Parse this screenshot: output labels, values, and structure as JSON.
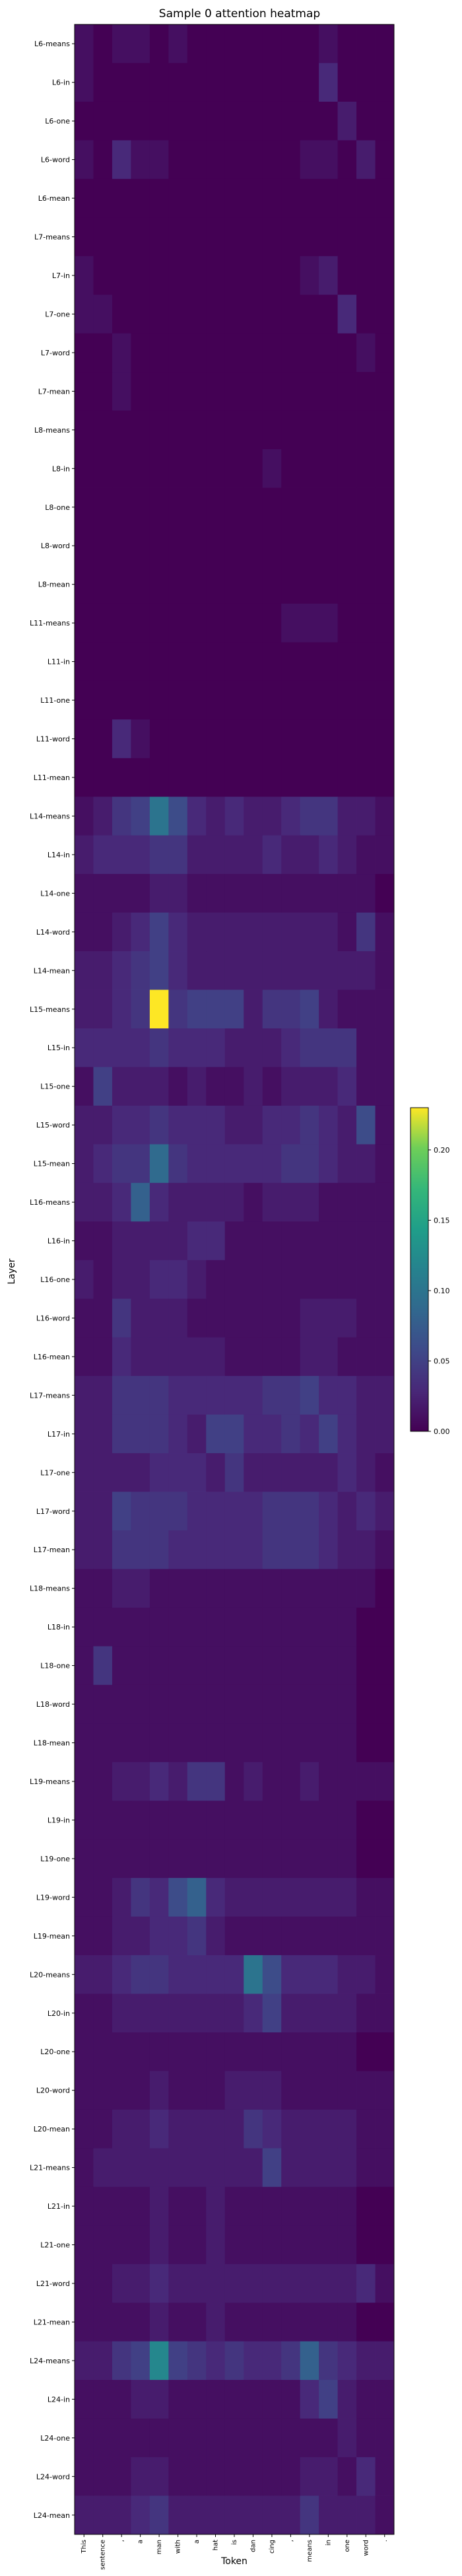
{
  "chart_data": {
    "type": "heatmap",
    "title": "Sample 0 attention heatmap",
    "xlabel": "Token",
    "ylabel": "Layer",
    "tokens": [
      "This",
      "sentence",
      ",",
      "a",
      "man",
      "with",
      "a",
      "hat",
      "is",
      "dan",
      "cing",
      ",",
      "means",
      "in",
      "one",
      "word",
      "."
    ],
    "rows": [
      "L6-means",
      "L6-in",
      "L6-one",
      "L6-word",
      "L6-mean",
      "L7-means",
      "L7-in",
      "L7-one",
      "L7-word",
      "L7-mean",
      "L8-means",
      "L8-in",
      "L8-one",
      "L8-word",
      "L8-mean",
      "L11-means",
      "L11-in",
      "L11-one",
      "L11-word",
      "L11-mean",
      "L14-means",
      "L14-in",
      "L14-one",
      "L14-word",
      "L14-mean",
      "L15-means",
      "L15-in",
      "L15-one",
      "L15-word",
      "L15-mean",
      "L16-means",
      "L16-in",
      "L16-one",
      "L16-word",
      "L16-mean",
      "L17-means",
      "L17-in",
      "L17-one",
      "L17-word",
      "L17-mean",
      "L18-means",
      "L18-in",
      "L18-one",
      "L18-word",
      "L18-mean",
      "L19-means",
      "L19-in",
      "L19-one",
      "L19-word",
      "L19-mean",
      "L20-means",
      "L20-in",
      "L20-one",
      "L20-word",
      "L20-mean",
      "L21-means",
      "L21-in",
      "L21-one",
      "L21-word",
      "L21-mean",
      "L24-means",
      "L24-in",
      "L24-one",
      "L24-word",
      "L24-mean"
    ],
    "values": [
      [
        0.01,
        0.0,
        0.01,
        0.01,
        0.0,
        0.01,
        0.0,
        0.0,
        0.0,
        0.0,
        0.0,
        0.0,
        0.0,
        0.01,
        0.0,
        0.0,
        0.0
      ],
      [
        0.01,
        0.0,
        0.0,
        0.0,
        0.0,
        0.0,
        0.0,
        0.0,
        0.0,
        0.0,
        0.0,
        0.0,
        0.0,
        0.03,
        0.0,
        0.0,
        0.0
      ],
      [
        0.0,
        0.0,
        0.0,
        0.0,
        0.0,
        0.0,
        0.0,
        0.0,
        0.0,
        0.0,
        0.0,
        0.0,
        0.0,
        0.0,
        0.02,
        0.0,
        0.0
      ],
      [
        0.01,
        0.0,
        0.03,
        0.01,
        0.01,
        0.0,
        0.0,
        0.0,
        0.0,
        0.0,
        0.0,
        0.0,
        0.01,
        0.01,
        0.0,
        0.02,
        0.0
      ],
      [
        0.0,
        0.0,
        0.0,
        0.0,
        0.0,
        0.0,
        0.0,
        0.0,
        0.0,
        0.0,
        0.0,
        0.0,
        0.0,
        0.0,
        0.0,
        0.0,
        0.0
      ],
      [
        0.0,
        0.0,
        0.0,
        0.0,
        0.0,
        0.0,
        0.0,
        0.0,
        0.0,
        0.0,
        0.0,
        0.0,
        0.0,
        0.0,
        0.0,
        0.0,
        0.0
      ],
      [
        0.01,
        0.0,
        0.0,
        0.0,
        0.0,
        0.0,
        0.0,
        0.0,
        0.0,
        0.0,
        0.0,
        0.0,
        0.01,
        0.02,
        0.0,
        0.0,
        0.0
      ],
      [
        0.01,
        0.01,
        0.0,
        0.0,
        0.0,
        0.0,
        0.0,
        0.0,
        0.0,
        0.0,
        0.0,
        0.0,
        0.0,
        0.0,
        0.03,
        0.0,
        0.0
      ],
      [
        0.0,
        0.0,
        0.01,
        0.0,
        0.0,
        0.0,
        0.0,
        0.0,
        0.0,
        0.0,
        0.0,
        0.0,
        0.0,
        0.0,
        0.0,
        0.01,
        0.0
      ],
      [
        0.0,
        0.0,
        0.01,
        0.0,
        0.0,
        0.0,
        0.0,
        0.0,
        0.0,
        0.0,
        0.0,
        0.0,
        0.0,
        0.0,
        0.0,
        0.0,
        0.0
      ],
      [
        0.0,
        0.0,
        0.0,
        0.0,
        0.0,
        0.0,
        0.0,
        0.0,
        0.0,
        0.0,
        0.0,
        0.0,
        0.0,
        0.0,
        0.0,
        0.0,
        0.0
      ],
      [
        0.0,
        0.0,
        0.0,
        0.0,
        0.0,
        0.0,
        0.0,
        0.0,
        0.0,
        0.0,
        0.01,
        0.0,
        0.0,
        0.0,
        0.0,
        0.0,
        0.0
      ],
      [
        0.0,
        0.0,
        0.0,
        0.0,
        0.0,
        0.0,
        0.0,
        0.0,
        0.0,
        0.0,
        0.0,
        0.0,
        0.0,
        0.0,
        0.0,
        0.0,
        0.0
      ],
      [
        0.0,
        0.0,
        0.0,
        0.0,
        0.0,
        0.0,
        0.0,
        0.0,
        0.0,
        0.0,
        0.0,
        0.0,
        0.0,
        0.0,
        0.0,
        0.0,
        0.0
      ],
      [
        0.0,
        0.0,
        0.0,
        0.0,
        0.0,
        0.0,
        0.0,
        0.0,
        0.0,
        0.0,
        0.0,
        0.0,
        0.0,
        0.0,
        0.0,
        0.0,
        0.0
      ],
      [
        0.0,
        0.0,
        0.0,
        0.0,
        0.0,
        0.0,
        0.0,
        0.0,
        0.0,
        0.0,
        0.0,
        0.01,
        0.01,
        0.01,
        0.0,
        0.0,
        0.0
      ],
      [
        0.0,
        0.0,
        0.0,
        0.0,
        0.0,
        0.0,
        0.0,
        0.0,
        0.0,
        0.0,
        0.0,
        0.0,
        0.0,
        0.0,
        0.0,
        0.0,
        0.0
      ],
      [
        0.0,
        0.0,
        0.0,
        0.0,
        0.0,
        0.0,
        0.0,
        0.0,
        0.0,
        0.0,
        0.0,
        0.0,
        0.0,
        0.0,
        0.0,
        0.0,
        0.0
      ],
      [
        0.0,
        0.0,
        0.03,
        0.01,
        0.0,
        0.0,
        0.0,
        0.0,
        0.0,
        0.0,
        0.0,
        0.0,
        0.0,
        0.0,
        0.0,
        0.0,
        0.0
      ],
      [
        0.0,
        0.0,
        0.0,
        0.0,
        0.0,
        0.0,
        0.0,
        0.0,
        0.0,
        0.0,
        0.0,
        0.0,
        0.0,
        0.0,
        0.0,
        0.0,
        0.0
      ],
      [
        0.01,
        0.02,
        0.04,
        0.05,
        0.1,
        0.06,
        0.03,
        0.02,
        0.03,
        0.02,
        0.02,
        0.03,
        0.04,
        0.04,
        0.02,
        0.02,
        0.01
      ],
      [
        0.02,
        0.03,
        0.03,
        0.03,
        0.04,
        0.04,
        0.02,
        0.02,
        0.02,
        0.02,
        0.03,
        0.02,
        0.02,
        0.03,
        0.02,
        0.01,
        0.01
      ],
      [
        0.01,
        0.01,
        0.01,
        0.01,
        0.02,
        0.02,
        0.01,
        0.01,
        0.01,
        0.01,
        0.01,
        0.01,
        0.01,
        0.01,
        0.01,
        0.01,
        0.0
      ],
      [
        0.01,
        0.01,
        0.02,
        0.03,
        0.05,
        0.03,
        0.02,
        0.02,
        0.02,
        0.02,
        0.02,
        0.02,
        0.02,
        0.02,
        0.01,
        0.04,
        0.01
      ],
      [
        0.02,
        0.02,
        0.03,
        0.04,
        0.05,
        0.03,
        0.02,
        0.02,
        0.02,
        0.02,
        0.02,
        0.02,
        0.02,
        0.02,
        0.02,
        0.02,
        0.01
      ],
      [
        0.02,
        0.02,
        0.03,
        0.04,
        0.23,
        0.04,
        0.05,
        0.05,
        0.05,
        0.02,
        0.04,
        0.04,
        0.05,
        0.02,
        0.01,
        0.01,
        0.01
      ],
      [
        0.03,
        0.03,
        0.03,
        0.03,
        0.04,
        0.03,
        0.03,
        0.03,
        0.02,
        0.02,
        0.02,
        0.03,
        0.04,
        0.04,
        0.04,
        0.01,
        0.01
      ],
      [
        0.01,
        0.05,
        0.02,
        0.02,
        0.02,
        0.01,
        0.02,
        0.01,
        0.01,
        0.02,
        0.01,
        0.02,
        0.02,
        0.02,
        0.03,
        0.01,
        0.01
      ],
      [
        0.02,
        0.02,
        0.03,
        0.03,
        0.04,
        0.03,
        0.03,
        0.03,
        0.02,
        0.02,
        0.03,
        0.03,
        0.04,
        0.03,
        0.02,
        0.06,
        0.01
      ],
      [
        0.02,
        0.03,
        0.04,
        0.04,
        0.09,
        0.04,
        0.03,
        0.03,
        0.03,
        0.03,
        0.03,
        0.04,
        0.04,
        0.03,
        0.02,
        0.02,
        0.01
      ],
      [
        0.02,
        0.02,
        0.03,
        0.08,
        0.03,
        0.02,
        0.02,
        0.02,
        0.02,
        0.01,
        0.02,
        0.02,
        0.02,
        0.01,
        0.01,
        0.01,
        0.01
      ],
      [
        0.01,
        0.01,
        0.02,
        0.02,
        0.02,
        0.02,
        0.03,
        0.03,
        0.01,
        0.01,
        0.01,
        0.01,
        0.01,
        0.01,
        0.01,
        0.01,
        0.01
      ],
      [
        0.02,
        0.01,
        0.02,
        0.02,
        0.03,
        0.03,
        0.02,
        0.01,
        0.01,
        0.01,
        0.01,
        0.01,
        0.01,
        0.01,
        0.01,
        0.01,
        0.01
      ],
      [
        0.01,
        0.01,
        0.04,
        0.02,
        0.02,
        0.02,
        0.01,
        0.01,
        0.01,
        0.01,
        0.01,
        0.01,
        0.02,
        0.02,
        0.02,
        0.01,
        0.01
      ],
      [
        0.01,
        0.01,
        0.03,
        0.02,
        0.02,
        0.02,
        0.02,
        0.02,
        0.01,
        0.01,
        0.01,
        0.01,
        0.02,
        0.02,
        0.01,
        0.01,
        0.01
      ],
      [
        0.02,
        0.02,
        0.04,
        0.04,
        0.04,
        0.03,
        0.03,
        0.03,
        0.03,
        0.03,
        0.04,
        0.04,
        0.05,
        0.03,
        0.03,
        0.02,
        0.02
      ],
      [
        0.02,
        0.02,
        0.04,
        0.04,
        0.04,
        0.03,
        0.02,
        0.05,
        0.05,
        0.03,
        0.03,
        0.04,
        0.03,
        0.05,
        0.03,
        0.02,
        0.02
      ],
      [
        0.02,
        0.02,
        0.02,
        0.02,
        0.03,
        0.03,
        0.03,
        0.02,
        0.04,
        0.02,
        0.02,
        0.02,
        0.02,
        0.02,
        0.03,
        0.02,
        0.01
      ],
      [
        0.02,
        0.02,
        0.05,
        0.04,
        0.04,
        0.04,
        0.03,
        0.03,
        0.03,
        0.03,
        0.04,
        0.04,
        0.04,
        0.03,
        0.02,
        0.03,
        0.02
      ],
      [
        0.02,
        0.02,
        0.04,
        0.04,
        0.04,
        0.03,
        0.03,
        0.03,
        0.03,
        0.03,
        0.04,
        0.04,
        0.04,
        0.03,
        0.02,
        0.02,
        0.01
      ],
      [
        0.01,
        0.01,
        0.02,
        0.02,
        0.01,
        0.01,
        0.01,
        0.01,
        0.01,
        0.01,
        0.01,
        0.01,
        0.01,
        0.01,
        0.01,
        0.01,
        0.0
      ],
      [
        0.01,
        0.01,
        0.01,
        0.01,
        0.01,
        0.01,
        0.01,
        0.01,
        0.01,
        0.01,
        0.01,
        0.01,
        0.01,
        0.01,
        0.01,
        0.0,
        0.0
      ],
      [
        0.01,
        0.04,
        0.01,
        0.01,
        0.01,
        0.01,
        0.01,
        0.01,
        0.01,
        0.01,
        0.01,
        0.01,
        0.01,
        0.01,
        0.01,
        0.0,
        0.0
      ],
      [
        0.01,
        0.01,
        0.01,
        0.01,
        0.01,
        0.01,
        0.01,
        0.01,
        0.01,
        0.01,
        0.01,
        0.01,
        0.01,
        0.01,
        0.01,
        0.0,
        0.0
      ],
      [
        0.01,
        0.01,
        0.01,
        0.01,
        0.01,
        0.01,
        0.01,
        0.01,
        0.01,
        0.01,
        0.01,
        0.01,
        0.01,
        0.01,
        0.01,
        0.0,
        0.0
      ],
      [
        0.01,
        0.01,
        0.02,
        0.02,
        0.03,
        0.02,
        0.04,
        0.04,
        0.01,
        0.02,
        0.01,
        0.01,
        0.02,
        0.01,
        0.01,
        0.01,
        0.01
      ],
      [
        0.01,
        0.01,
        0.01,
        0.01,
        0.01,
        0.01,
        0.01,
        0.01,
        0.01,
        0.01,
        0.01,
        0.01,
        0.01,
        0.01,
        0.01,
        0.0,
        0.0
      ],
      [
        0.01,
        0.01,
        0.01,
        0.01,
        0.01,
        0.01,
        0.01,
        0.01,
        0.01,
        0.01,
        0.01,
        0.01,
        0.01,
        0.01,
        0.01,
        0.0,
        0.0
      ],
      [
        0.01,
        0.01,
        0.02,
        0.04,
        0.03,
        0.06,
        0.08,
        0.03,
        0.02,
        0.02,
        0.02,
        0.02,
        0.02,
        0.02,
        0.02,
        0.01,
        0.01
      ],
      [
        0.01,
        0.01,
        0.02,
        0.02,
        0.03,
        0.03,
        0.04,
        0.02,
        0.01,
        0.01,
        0.01,
        0.01,
        0.01,
        0.01,
        0.01,
        0.01,
        0.01
      ],
      [
        0.02,
        0.02,
        0.03,
        0.04,
        0.04,
        0.03,
        0.03,
        0.03,
        0.03,
        0.1,
        0.06,
        0.03,
        0.03,
        0.03,
        0.02,
        0.02,
        0.01
      ],
      [
        0.01,
        0.01,
        0.02,
        0.02,
        0.02,
        0.02,
        0.02,
        0.02,
        0.02,
        0.03,
        0.05,
        0.02,
        0.02,
        0.02,
        0.02,
        0.01,
        0.01
      ],
      [
        0.01,
        0.01,
        0.01,
        0.01,
        0.01,
        0.01,
        0.01,
        0.01,
        0.01,
        0.01,
        0.01,
        0.01,
        0.01,
        0.01,
        0.01,
        0.0,
        0.0
      ],
      [
        0.01,
        0.01,
        0.01,
        0.01,
        0.02,
        0.01,
        0.01,
        0.01,
        0.02,
        0.02,
        0.02,
        0.01,
        0.01,
        0.01,
        0.01,
        0.01,
        0.01
      ],
      [
        0.01,
        0.01,
        0.02,
        0.02,
        0.03,
        0.02,
        0.02,
        0.02,
        0.02,
        0.04,
        0.03,
        0.02,
        0.02,
        0.02,
        0.02,
        0.01,
        0.01
      ],
      [
        0.01,
        0.02,
        0.02,
        0.02,
        0.02,
        0.02,
        0.02,
        0.02,
        0.02,
        0.02,
        0.05,
        0.02,
        0.02,
        0.02,
        0.02,
        0.01,
        0.01
      ],
      [
        0.01,
        0.01,
        0.01,
        0.01,
        0.02,
        0.01,
        0.01,
        0.02,
        0.01,
        0.01,
        0.01,
        0.01,
        0.01,
        0.01,
        0.01,
        0.0,
        0.0
      ],
      [
        0.01,
        0.01,
        0.01,
        0.01,
        0.02,
        0.01,
        0.01,
        0.02,
        0.01,
        0.01,
        0.01,
        0.01,
        0.01,
        0.01,
        0.01,
        0.0,
        0.0
      ],
      [
        0.01,
        0.01,
        0.02,
        0.02,
        0.03,
        0.02,
        0.02,
        0.02,
        0.02,
        0.02,
        0.02,
        0.02,
        0.02,
        0.02,
        0.02,
        0.03,
        0.01
      ],
      [
        0.01,
        0.01,
        0.01,
        0.01,
        0.02,
        0.01,
        0.01,
        0.02,
        0.01,
        0.01,
        0.01,
        0.01,
        0.01,
        0.01,
        0.01,
        0.0,
        0.0
      ],
      [
        0.02,
        0.02,
        0.04,
        0.05,
        0.12,
        0.05,
        0.04,
        0.03,
        0.04,
        0.03,
        0.03,
        0.04,
        0.08,
        0.04,
        0.03,
        0.02,
        0.02
      ],
      [
        0.01,
        0.01,
        0.01,
        0.02,
        0.02,
        0.01,
        0.01,
        0.01,
        0.01,
        0.01,
        0.01,
        0.01,
        0.03,
        0.05,
        0.02,
        0.01,
        0.01
      ],
      [
        0.01,
        0.01,
        0.01,
        0.01,
        0.01,
        0.01,
        0.01,
        0.01,
        0.01,
        0.01,
        0.01,
        0.01,
        0.01,
        0.01,
        0.02,
        0.01,
        0.01
      ],
      [
        0.01,
        0.01,
        0.01,
        0.02,
        0.02,
        0.01,
        0.01,
        0.01,
        0.01,
        0.01,
        0.01,
        0.01,
        0.02,
        0.02,
        0.01,
        0.03,
        0.01
      ],
      [
        0.02,
        0.02,
        0.02,
        0.03,
        0.04,
        0.02,
        0.02,
        0.02,
        0.02,
        0.02,
        0.02,
        0.02,
        0.04,
        0.02,
        0.02,
        0.02,
        0.01
      ]
    ],
    "colorbar": {
      "ticks": [
        0.0,
        0.05,
        0.1,
        0.15,
        0.2
      ],
      "tick_labels": [
        "0.00",
        "0.05",
        "0.10",
        "0.15",
        "0.20"
      ],
      "vmin": 0,
      "vmax": 0.23,
      "colormap": "viridis"
    },
    "grid": false,
    "legend": "none"
  }
}
